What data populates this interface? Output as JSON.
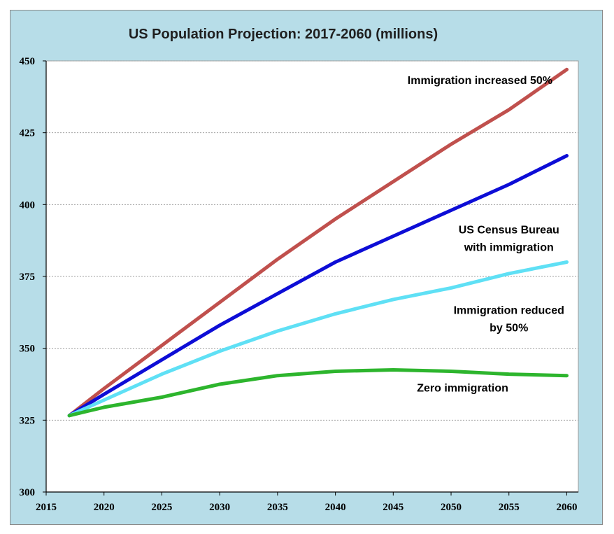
{
  "chart_data": {
    "type": "line",
    "title": "US Population Projection: 2017-2060 (millions)",
    "xlabel": "",
    "ylabel": "",
    "xlim": [
      2015,
      2061
    ],
    "ylim": [
      300,
      450
    ],
    "xticks": [
      2015,
      2020,
      2025,
      2030,
      2035,
      2040,
      2045,
      2050,
      2055,
      2060
    ],
    "yticks": [
      300,
      325,
      350,
      375,
      400,
      425,
      450
    ],
    "grid": "horizontal",
    "legend": "none",
    "series": [
      {
        "color": "#c0504d",
        "x": [
          2017,
          2020,
          2025,
          2030,
          2035,
          2040,
          2045,
          2050,
          2055,
          2060
        ],
        "values": [
          326.6,
          336,
          351,
          366,
          381,
          395,
          408,
          421,
          433,
          447
        ]
      },
      {
        "color": "#0d0dd6",
        "x": [
          2017,
          2020,
          2025,
          2030,
          2035,
          2040,
          2045,
          2050,
          2055,
          2060
        ],
        "values": [
          326.6,
          334,
          346,
          358,
          369,
          380,
          389,
          398,
          407,
          417
        ]
      },
      {
        "color": "#5fe0f5",
        "x": [
          2017,
          2020,
          2025,
          2030,
          2035,
          2040,
          2045,
          2050,
          2055,
          2060
        ],
        "values": [
          326.6,
          332,
          341,
          349,
          356,
          362,
          367,
          371,
          376,
          380
        ]
      },
      {
        "color": "#2db52d",
        "x": [
          2017,
          2020,
          2025,
          2030,
          2035,
          2040,
          2045,
          2050,
          2055,
          2060
        ],
        "values": [
          326.6,
          329.5,
          333,
          337.5,
          340.5,
          342,
          342.5,
          342,
          341,
          340.5
        ]
      }
    ],
    "annotations": [
      {
        "lines": [
          "Immigration increased 50%"
        ],
        "x": 2052.5,
        "y": 442
      },
      {
        "lines": [
          "US Census Bureau",
          "with immigration"
        ],
        "x": 2055,
        "y": 390
      },
      {
        "lines": [
          "Immigration reduced",
          "by 50%"
        ],
        "x": 2055,
        "y": 362
      },
      {
        "lines": [
          "Zero immigration"
        ],
        "x": 2051,
        "y": 335
      }
    ]
  }
}
